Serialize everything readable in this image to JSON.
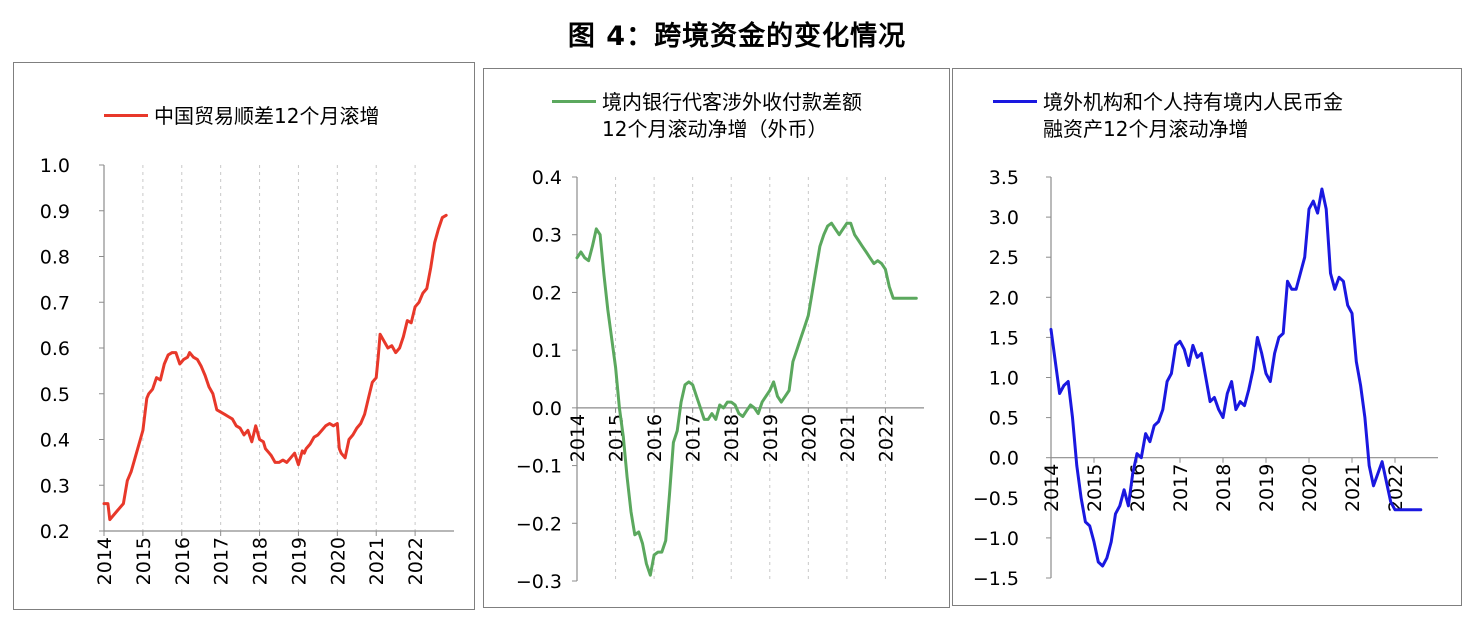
{
  "figure_title": "图 4：跨境资金的变化情况",
  "chart_data": [
    {
      "type": "line",
      "legend": "中国贸易顺差12个月滚增",
      "color": "#e8382a",
      "ylim": [
        0.2,
        1.0
      ],
      "yticks": [
        "1.0",
        "0.9",
        "0.8",
        "0.7",
        "0.6",
        "0.5",
        "0.4",
        "0.3",
        "0.2"
      ],
      "xticks": [
        "2014",
        "2015",
        "2016",
        "2017",
        "2018",
        "2019",
        "2020",
        "2021",
        "2022"
      ],
      "xlim": [
        2014.0,
        2023.0
      ],
      "grid": "vertical-dashed",
      "series": [
        {
          "x": [
            2014.0,
            2014.1,
            2014.15,
            2014.25,
            2014.35,
            2014.5,
            2014.6,
            2014.7,
            2014.8,
            2014.9,
            2015.0,
            2015.1,
            2015.15,
            2015.25,
            2015.35,
            2015.45,
            2015.55,
            2015.65,
            2015.75,
            2015.85,
            2015.95,
            2016.05,
            2016.15,
            2016.2,
            2016.3,
            2016.4,
            2016.5,
            2016.6,
            2016.7,
            2016.8,
            2016.9,
            2017.0,
            2017.1,
            2017.2,
            2017.3,
            2017.4,
            2017.5,
            2017.6,
            2017.7,
            2017.8,
            2017.9,
            2018.0,
            2018.1,
            2018.15,
            2018.25,
            2018.3,
            2018.4,
            2018.5,
            2018.6,
            2018.7,
            2018.8,
            2018.9,
            2019.0,
            2019.1,
            2019.15,
            2019.2,
            2019.3,
            2019.4,
            2019.5,
            2019.6,
            2019.7,
            2019.8,
            2019.9,
            2020.0,
            2020.05,
            2020.1,
            2020.2,
            2020.3,
            2020.4,
            2020.5,
            2020.6,
            2020.7,
            2020.8,
            2020.9,
            2021.0,
            2021.05,
            2021.1,
            2021.2,
            2021.3,
            2021.4,
            2021.5,
            2021.6,
            2021.7,
            2021.8,
            2021.9,
            2022.0,
            2022.1,
            2022.2,
            2022.3,
            2022.4,
            2022.5,
            2022.6,
            2022.7,
            2022.8
          ],
          "values": [
            0.26,
            0.26,
            0.225,
            0.235,
            0.245,
            0.26,
            0.31,
            0.33,
            0.36,
            0.39,
            0.42,
            0.49,
            0.5,
            0.51,
            0.535,
            0.53,
            0.565,
            0.585,
            0.59,
            0.59,
            0.565,
            0.575,
            0.58,
            0.59,
            0.58,
            0.575,
            0.56,
            0.54,
            0.515,
            0.5,
            0.465,
            0.46,
            0.455,
            0.45,
            0.445,
            0.43,
            0.425,
            0.41,
            0.42,
            0.395,
            0.43,
            0.4,
            0.395,
            0.38,
            0.37,
            0.365,
            0.35,
            0.35,
            0.355,
            0.35,
            0.36,
            0.37,
            0.345,
            0.375,
            0.37,
            0.38,
            0.39,
            0.405,
            0.41,
            0.42,
            0.43,
            0.435,
            0.43,
            0.435,
            0.38,
            0.37,
            0.36,
            0.4,
            0.41,
            0.425,
            0.435,
            0.455,
            0.49,
            0.525,
            0.535,
            0.58,
            0.63,
            0.615,
            0.6,
            0.605,
            0.59,
            0.6,
            0.625,
            0.66,
            0.655,
            0.69,
            0.7,
            0.72,
            0.73,
            0.775,
            0.83,
            0.86,
            0.885,
            0.89
          ]
        }
      ]
    },
    {
      "type": "line",
      "legend": "境内银行代客涉外收付款差额\n12个月滚动净增（外币）",
      "color": "#5ba85e",
      "ylim": [
        -0.3,
        0.4
      ],
      "yticks": [
        "0.4",
        "0.3",
        "0.2",
        "0.1",
        "0.0",
        "−0.1",
        "−0.2",
        "−0.3"
      ],
      "negative_tick_color": "#e8382a",
      "xticks": [
        "2014",
        "2015",
        "2016",
        "2017",
        "2018",
        "2019",
        "2020",
        "2021",
        "2022"
      ],
      "xlim": [
        2014.0,
        2023.0
      ],
      "grid": "vertical-dashed",
      "series": [
        {
          "x": [
            2014.0,
            2014.1,
            2014.2,
            2014.3,
            2014.4,
            2014.5,
            2014.6,
            2014.7,
            2014.8,
            2014.9,
            2015.0,
            2015.1,
            2015.2,
            2015.3,
            2015.4,
            2015.5,
            2015.6,
            2015.7,
            2015.8,
            2015.9,
            2016.0,
            2016.1,
            2016.2,
            2016.3,
            2016.4,
            2016.5,
            2016.6,
            2016.7,
            2016.8,
            2016.9,
            2017.0,
            2017.1,
            2017.2,
            2017.3,
            2017.4,
            2017.5,
            2017.6,
            2017.7,
            2017.8,
            2017.9,
            2018.0,
            2018.1,
            2018.2,
            2018.3,
            2018.4,
            2018.5,
            2018.6,
            2018.7,
            2018.8,
            2018.9,
            2019.0,
            2019.1,
            2019.2,
            2019.3,
            2019.4,
            2019.5,
            2019.6,
            2019.7,
            2019.8,
            2019.9,
            2020.0,
            2020.1,
            2020.2,
            2020.3,
            2020.4,
            2020.5,
            2020.6,
            2020.7,
            2020.8,
            2020.9,
            2021.0,
            2021.1,
            2021.2,
            2021.3,
            2021.4,
            2021.5,
            2021.6,
            2021.7,
            2021.8,
            2021.9,
            2022.0,
            2022.1,
            2022.2,
            2022.3,
            2022.4,
            2022.5,
            2022.6,
            2022.7,
            2022.8
          ],
          "values": [
            0.26,
            0.27,
            0.26,
            0.255,
            0.28,
            0.31,
            0.3,
            0.23,
            0.17,
            0.12,
            0.07,
            0.0,
            -0.05,
            -0.12,
            -0.18,
            -0.22,
            -0.215,
            -0.235,
            -0.27,
            -0.29,
            -0.255,
            -0.25,
            -0.25,
            -0.23,
            -0.15,
            -0.06,
            -0.04,
            0.01,
            0.04,
            0.045,
            0.04,
            0.02,
            0.0,
            -0.02,
            -0.02,
            -0.01,
            -0.02,
            0.005,
            0.0,
            0.01,
            0.01,
            0.005,
            -0.01,
            -0.015,
            -0.005,
            0.005,
            0.0,
            -0.01,
            0.01,
            0.02,
            0.03,
            0.045,
            0.02,
            0.01,
            0.02,
            0.03,
            0.08,
            0.1,
            0.12,
            0.14,
            0.16,
            0.2,
            0.24,
            0.28,
            0.3,
            0.315,
            0.32,
            0.31,
            0.3,
            0.31,
            0.32,
            0.32,
            0.3,
            0.29,
            0.28,
            0.27,
            0.26,
            0.25,
            0.255,
            0.25,
            0.24,
            0.21,
            0.19,
            0.19,
            0.19,
            0.19,
            0.19,
            0.19,
            0.19
          ]
        }
      ]
    },
    {
      "type": "line",
      "legend": "境外机构和个人持有境内人民币金\n融资产12个月滚动净增",
      "color": "#1a18e0",
      "ylim": [
        -1.5,
        3.5
      ],
      "yticks": [
        "3.5",
        "3.0",
        "2.5",
        "2.0",
        "1.5",
        "1.0",
        "0.5",
        "0.0",
        "−0.5",
        "−1.0",
        "−1.5"
      ],
      "xticks": [
        "2014",
        "2015",
        "2016",
        "2017",
        "2018",
        "2019",
        "2020",
        "2021",
        "2022"
      ],
      "xlim": [
        2014.0,
        2023.0
      ],
      "grid": "none",
      "series": [
        {
          "x": [
            2014.0,
            2014.1,
            2014.2,
            2014.3,
            2014.4,
            2014.5,
            2014.6,
            2014.7,
            2014.8,
            2014.9,
            2015.0,
            2015.1,
            2015.2,
            2015.3,
            2015.4,
            2015.5,
            2015.6,
            2015.7,
            2015.8,
            2015.9,
            2016.0,
            2016.1,
            2016.2,
            2016.3,
            2016.4,
            2016.5,
            2016.6,
            2016.7,
            2016.8,
            2016.9,
            2017.0,
            2017.1,
            2017.2,
            2017.3,
            2017.4,
            2017.5,
            2017.6,
            2017.7,
            2017.8,
            2017.9,
            2018.0,
            2018.1,
            2018.2,
            2018.3,
            2018.4,
            2018.5,
            2018.6,
            2018.7,
            2018.8,
            2018.9,
            2019.0,
            2019.1,
            2019.2,
            2019.3,
            2019.4,
            2019.5,
            2019.6,
            2019.7,
            2019.8,
            2019.9,
            2020.0,
            2020.1,
            2020.2,
            2020.3,
            2020.4,
            2020.5,
            2020.6,
            2020.7,
            2020.8,
            2020.9,
            2021.0,
            2021.1,
            2021.2,
            2021.3,
            2021.4,
            2021.5,
            2021.6,
            2021.7,
            2021.8,
            2021.9,
            2022.0,
            2022.1,
            2022.2,
            2022.3,
            2022.4,
            2022.5,
            2022.6
          ],
          "values": [
            1.6,
            1.2,
            0.8,
            0.9,
            0.95,
            0.5,
            -0.1,
            -0.5,
            -0.8,
            -0.85,
            -1.05,
            -1.3,
            -1.35,
            -1.25,
            -1.05,
            -0.7,
            -0.6,
            -0.4,
            -0.6,
            -0.2,
            0.05,
            0.0,
            0.3,
            0.2,
            0.4,
            0.45,
            0.6,
            0.95,
            1.05,
            1.4,
            1.45,
            1.35,
            1.15,
            1.4,
            1.25,
            1.3,
            1.0,
            0.7,
            0.75,
            0.6,
            0.5,
            0.8,
            0.95,
            0.6,
            0.7,
            0.65,
            0.85,
            1.1,
            1.5,
            1.3,
            1.05,
            0.95,
            1.3,
            1.5,
            1.55,
            2.2,
            2.1,
            2.1,
            2.3,
            2.5,
            3.1,
            3.2,
            3.05,
            3.35,
            3.1,
            2.3,
            2.1,
            2.25,
            2.2,
            1.9,
            1.8,
            1.2,
            0.9,
            0.5,
            -0.1,
            -0.35,
            -0.2,
            -0.05,
            -0.3,
            -0.55,
            -0.65,
            -0.65,
            -0.65,
            -0.65,
            -0.65,
            -0.65,
            -0.65
          ]
        }
      ]
    }
  ]
}
